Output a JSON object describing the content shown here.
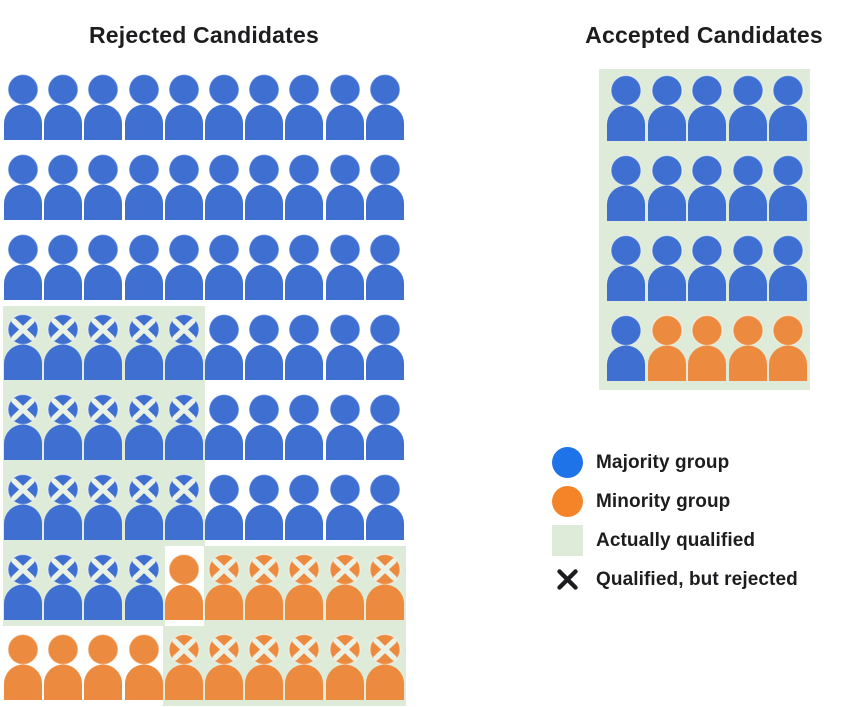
{
  "titles": {
    "rejected": "Rejected Candidates",
    "accepted": "Accepted Candidates"
  },
  "colors": {
    "majority_person": "#3E6FD1",
    "minority_person": "#EC8B40",
    "legend_majority": "#1E73E8",
    "legend_minority": "#F58428",
    "qualified_bg": "#DFEBD9",
    "x_on_person": "#E9F2E4",
    "x_legend": "#1D1D1F",
    "text": "#1D1D1F"
  },
  "legend": {
    "items": [
      {
        "icon": "majority-circle",
        "label": "Majority group"
      },
      {
        "icon": "minority-circle",
        "label": "Minority group"
      },
      {
        "icon": "qualified-square",
        "label": "Actually qualified"
      },
      {
        "icon": "x-mark",
        "label": "Qualified, but rejected"
      }
    ]
  },
  "chart_data": {
    "type": "icon-array",
    "cell_codes": {
      "b": "majority-group person",
      "o": "minority-group person",
      "B": "majority-group person, actually qualified (green), X = qualified but rejected",
      "O": "minority-group person, actually qualified (green), X = qualified but rejected"
    },
    "panels": [
      {
        "id": "rejected",
        "title": "Rejected Candidates",
        "columns": 10,
        "rows": [
          "bbbbbbbbbb",
          "bbbbbbbbbb",
          "bbbbbbbbbb",
          "BBBBBbbbbb",
          "BBBBBbbbbb",
          "BBBBBbbbbb",
          "BBBBoOOOOO",
          "ooooOOOOOO"
        ],
        "counts": {
          "total": 80,
          "majority_plain": 45,
          "majority_qualified_rejected": 19,
          "minority_plain": 5,
          "minority_qualified_rejected": 11
        }
      },
      {
        "id": "accepted",
        "title": "Accepted Candidates",
        "columns": 5,
        "all_qualified": true,
        "rows": [
          "bbbbb",
          "bbbbb",
          "bbbbb",
          "boooo"
        ],
        "counts": {
          "total": 20,
          "majority_accepted": 16,
          "minority_accepted": 4
        }
      }
    ],
    "legend_entries": [
      "Majority group",
      "Minority group",
      "Actually qualified",
      "Qualified, but rejected"
    ]
  }
}
